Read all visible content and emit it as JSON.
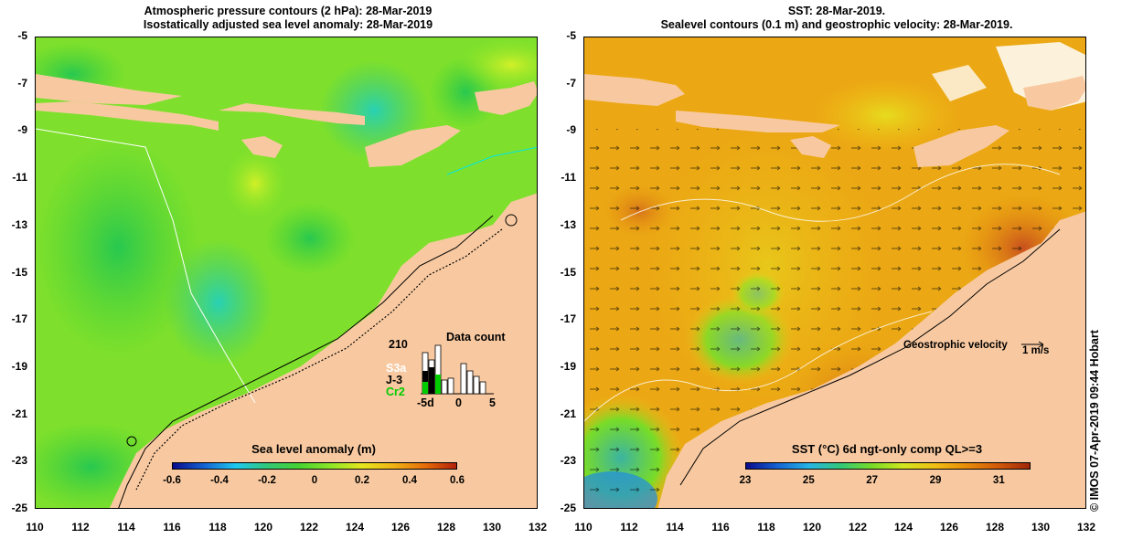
{
  "left_panel": {
    "title_line1": "Atmospheric pressure contours (2 hPa): 28-Mar-2019",
    "title_line2": "Isostatically adjusted sea level anomaly: 28-Mar-2019",
    "colorbar_title": "Sea level anomaly (m)",
    "colorbar_ticks": [
      "-0.6",
      "-0.4",
      "-0.2",
      "0",
      "0.2",
      "0.4",
      "0.6"
    ],
    "colorbar_range": [
      -0.6,
      0.6
    ]
  },
  "right_panel": {
    "title_line1": "SST: 28-Mar-2019.",
    "title_line2": "Sealevel contours (0.1 m) and geostrophic velocity: 28-Mar-2019.",
    "colorbar_title": "SST (°C) 6d ngt-only comp QL>=3",
    "colorbar_ticks": [
      "23",
      "25",
      "27",
      "29",
      "31"
    ],
    "colorbar_range": [
      23,
      32
    ],
    "velocity_label": "Geostrophic velocity",
    "velocity_unit": "1 m/s"
  },
  "data_count": {
    "title": "Data count",
    "max_label": "210",
    "missions": [
      {
        "name": "S3a",
        "color": "#ffffff"
      },
      {
        "name": "J-3",
        "color": "#000000"
      },
      {
        "name": "Cr2",
        "color": "#00cc00"
      }
    ],
    "x_ticks": [
      "-5d",
      "0",
      "5"
    ]
  },
  "axes": {
    "lat_ticks": [
      "-5",
      "-7",
      "-9",
      "-11",
      "-13",
      "-15",
      "-17",
      "-19",
      "-21",
      "-23",
      "-25"
    ],
    "lon_ticks": [
      "110",
      "112",
      "114",
      "116",
      "118",
      "120",
      "122",
      "124",
      "126",
      "128",
      "130",
      "132"
    ]
  },
  "credit": "© IMOS 07-Apr-2019 09:44 Hobart",
  "colors": {
    "land": "#f8c9a0",
    "sla_cmap": [
      "#0a0a8c",
      "#1464d2",
      "#1ec8f0",
      "#32c878",
      "#46d232",
      "#8ce628",
      "#e6e61e",
      "#f0b414",
      "#e66e0a",
      "#b41e0a"
    ],
    "sst_cmap": [
      "#0a0a8c",
      "#1464d2",
      "#28b4e6",
      "#32c878",
      "#78dc28",
      "#d2e61e",
      "#f0be14",
      "#e68c0a",
      "#d25a0a",
      "#a0280a"
    ]
  }
}
